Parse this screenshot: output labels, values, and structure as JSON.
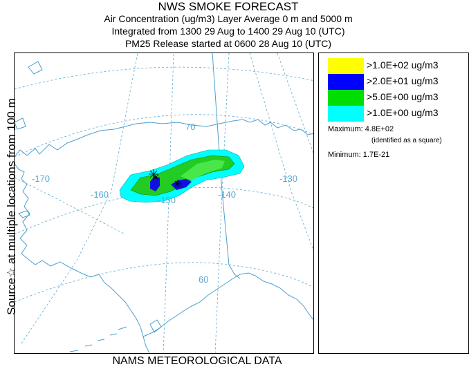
{
  "title": {
    "line1": "NWS SMOKE FORECAST",
    "line2": "Air Concentration (ug/m3) Layer Average    0 m and  5000 m",
    "line3": "Integrated from 1300 29 Aug to 1400 29 Aug 10 (UTC)",
    "line4": "PM25 Release started at 0600 28 Aug 10 (UTC)"
  },
  "side_label": "Source☆   at multiple locations    from   100 m",
  "bottom_label": "NAMS METEOROLOGICAL DATA",
  "map": {
    "lon_labels": [
      "-170",
      "-160",
      "-150",
      "-140",
      "-130"
    ],
    "lat_labels": [
      "70",
      "60"
    ],
    "colors": {
      "coast": "#4a9fcf",
      "grid": "#4a9fcf",
      "boundary": "#4a9fcf"
    }
  },
  "legend": {
    "items": [
      {
        "label": ">1.0E+02 ug/m3",
        "color": "#ffff00"
      },
      {
        "label": ">2.0E+01 ug/m3",
        "color": "#0000ff"
      },
      {
        "label": ">5.0E+00 ug/m3",
        "color": "#00dd00"
      },
      {
        "label": ">1.0E+00 ug/m3",
        "color": "#00ffff"
      }
    ],
    "maximum_label": "Maximum:",
    "maximum_value": "4.8E+02",
    "maximum_note": "(identified as a square)",
    "minimum_label": "Minimum:",
    "minimum_value": "1.7E-21"
  }
}
